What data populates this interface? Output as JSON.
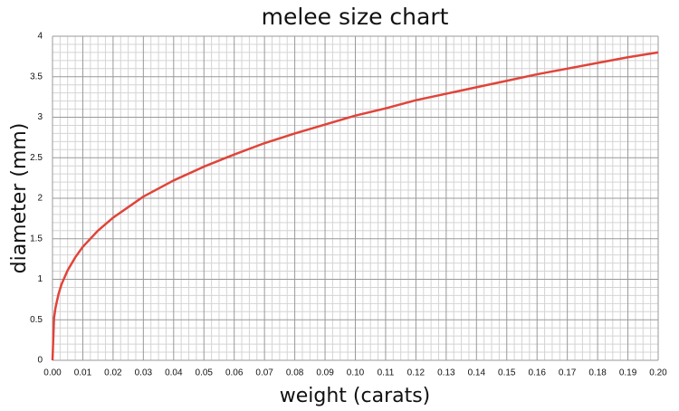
{
  "chart_data": {
    "type": "line",
    "title": "melee size chart",
    "xlabel": "weight (carats)",
    "ylabel": "diameter (mm)",
    "x": [
      0,
      0.0005,
      0.001,
      0.002,
      0.003,
      0.005,
      0.0075,
      0.01,
      0.015,
      0.02,
      0.03,
      0.04,
      0.05,
      0.06,
      0.07,
      0.08,
      0.09,
      0.1,
      0.11,
      0.12,
      0.13,
      0.14,
      0.15,
      0.16,
      0.17,
      0.18,
      0.19,
      0.2
    ],
    "values": [
      0,
      0.52,
      0.65,
      0.82,
      0.94,
      1.11,
      1.27,
      1.4,
      1.6,
      1.76,
      2.02,
      2.22,
      2.39,
      2.54,
      2.68,
      2.8,
      2.91,
      3.02,
      3.11,
      3.21,
      3.29,
      3.37,
      3.45,
      3.53,
      3.6,
      3.67,
      3.74,
      3.8
    ],
    "color": "#e0443a",
    "xlim": [
      0,
      0.2
    ],
    "ylim": [
      0,
      4
    ],
    "xticks": [
      {
        "value": 0,
        "label": "0.00"
      },
      0.01,
      0.02,
      0.03,
      0.04,
      0.05,
      0.06,
      0.07,
      0.08,
      0.09,
      {
        "value": 0.1,
        "label": "0.10"
      },
      0.11,
      0.12,
      0.13,
      0.14,
      0.15,
      0.16,
      0.17,
      0.18,
      0.19,
      {
        "value": 0.2,
        "label": "0.20"
      }
    ],
    "yticks": [
      0,
      0.5,
      1,
      1.5,
      2,
      2.5,
      3,
      3.5,
      4
    ],
    "grid": true,
    "minor_grid": true
  }
}
